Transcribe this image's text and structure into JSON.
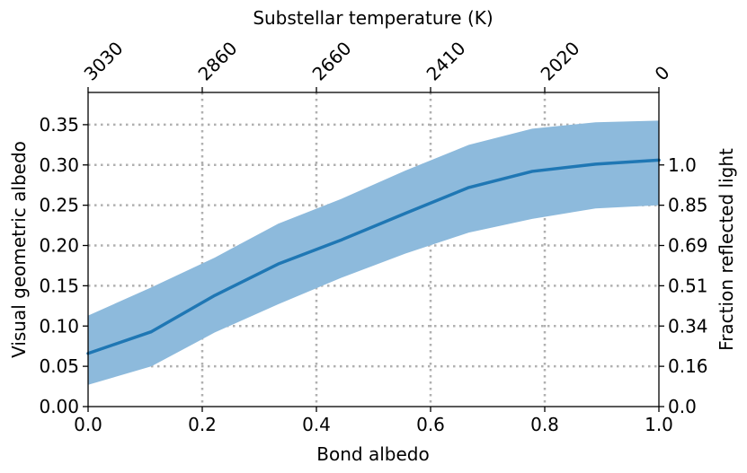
{
  "chart_data": {
    "type": "line",
    "xlabel": "Bond albedo",
    "ylabel": "Visual geometric albedo",
    "top_xlabel": "Substellar temperature (K)",
    "right_ylabel": "Fraction reflected light",
    "xlim": [
      0.0,
      1.0
    ],
    "ylim": [
      0.0,
      0.39
    ],
    "grid": true,
    "x_ticks": [
      0.0,
      0.2,
      0.4,
      0.6,
      0.8,
      1.0
    ],
    "x_tick_labels": [
      "0.0",
      "0.2",
      "0.4",
      "0.6",
      "0.8",
      "1.0"
    ],
    "y_ticks": [
      0.0,
      0.05,
      0.1,
      0.15,
      0.2,
      0.25,
      0.3,
      0.35
    ],
    "y_tick_labels": [
      "0.00",
      "0.05",
      "0.10",
      "0.15",
      "0.20",
      "0.25",
      "0.30",
      "0.35"
    ],
    "top_ticks": [
      0.0,
      0.2,
      0.4,
      0.6,
      0.8,
      1.0
    ],
    "top_tick_labels": [
      "3030",
      "2860",
      "2660",
      "2410",
      "2020",
      "0"
    ],
    "right_ticks": [
      0.0,
      0.05,
      0.1,
      0.15,
      0.2,
      0.25,
      0.3
    ],
    "right_tick_labels": [
      "0.0",
      "0.16",
      "0.34",
      "0.51",
      "0.69",
      "0.85",
      "1.0"
    ],
    "series": [
      {
        "x": [
          0.0,
          0.111,
          0.222,
          0.333,
          0.444,
          0.556,
          0.667,
          0.778,
          0.889,
          1.0
        ],
        "y": [
          0.066,
          0.093,
          0.138,
          0.177,
          0.207,
          0.24,
          0.272,
          0.292,
          0.301,
          0.306
        ],
        "lower": [
          0.027,
          0.05,
          0.092,
          0.127,
          0.16,
          0.19,
          0.216,
          0.233,
          0.246,
          0.25
        ],
        "upper": [
          0.113,
          0.148,
          0.185,
          0.227,
          0.258,
          0.293,
          0.325,
          0.345,
          0.353,
          0.355
        ]
      }
    ],
    "colors": {
      "line": "#1f77b4",
      "band": "#8dbadc",
      "grid": "#b0b0b0"
    }
  }
}
